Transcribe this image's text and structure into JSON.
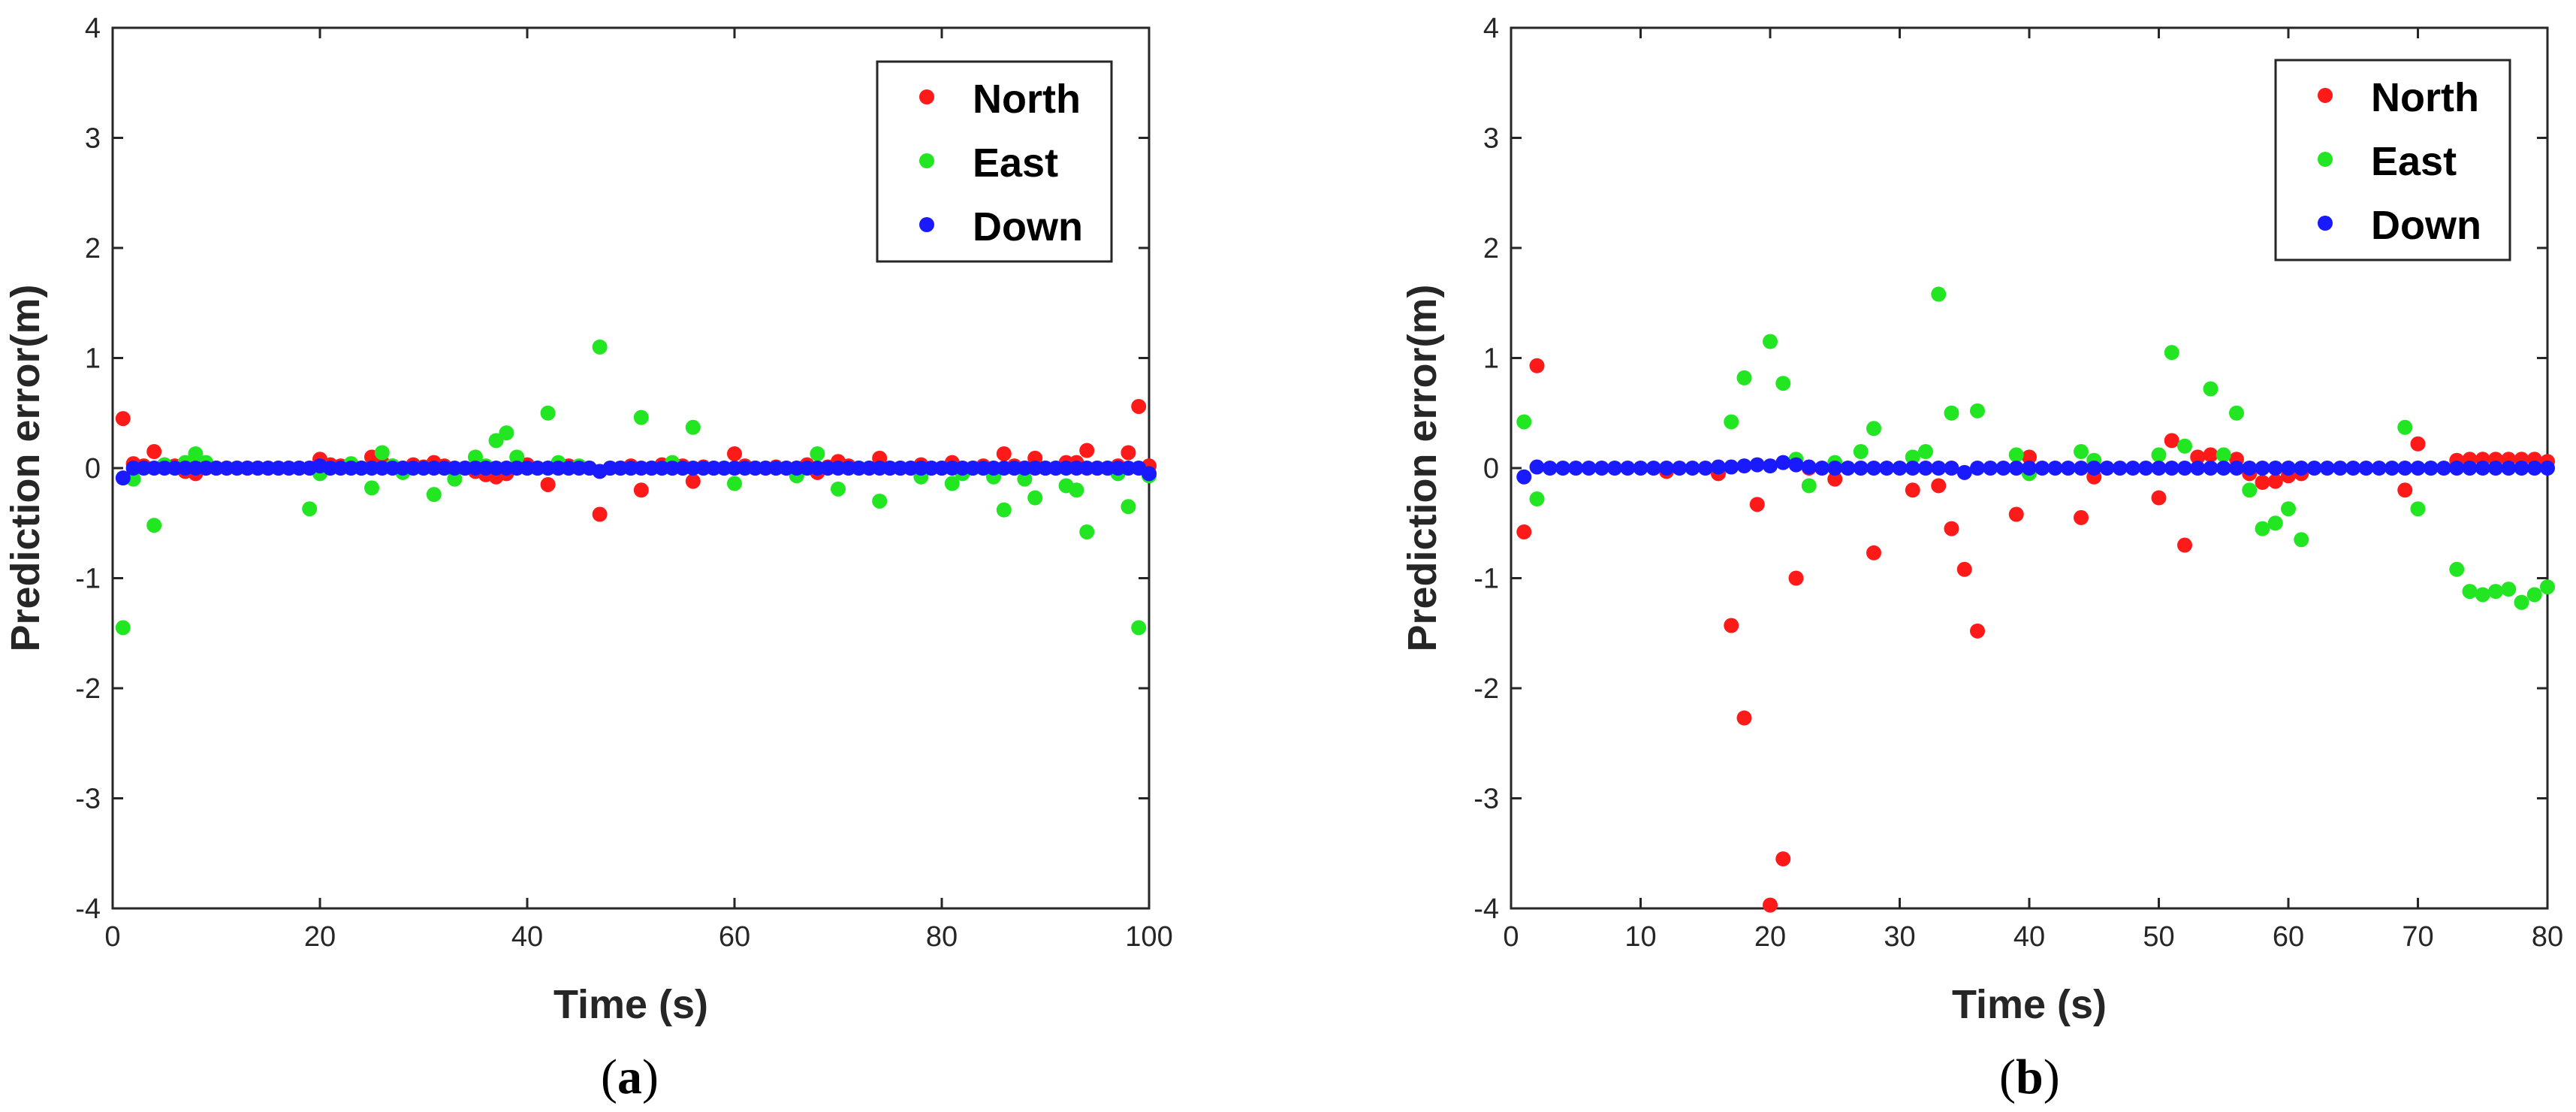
{
  "chart_data": [
    {
      "type": "scatter",
      "caption_letter": "a",
      "xlabel": "Time (s)",
      "ylabel": "Prediction error(m)",
      "xlim": [
        0,
        100
      ],
      "ylim": [
        -4,
        4
      ],
      "xticks": [
        "0",
        "20",
        "40",
        "60",
        "80",
        "100"
      ],
      "yticks": [
        "-4",
        "-3",
        "-2",
        "-1",
        "0",
        "1",
        "2",
        "3",
        "4"
      ],
      "legend": [
        "North",
        "East",
        "Down"
      ],
      "series": [
        {
          "name": "North",
          "color": "#ff1a1a",
          "x": [
            1,
            2,
            3,
            4,
            5,
            6,
            7,
            8,
            9,
            10,
            11,
            12,
            13,
            14,
            15,
            16,
            17,
            18,
            19,
            20,
            21,
            22,
            23,
            24,
            25,
            26,
            27,
            28,
            29,
            30,
            31,
            32,
            33,
            34,
            35,
            36,
            37,
            38,
            39,
            40,
            41,
            42,
            43,
            44,
            45,
            46,
            47,
            48,
            49,
            50,
            51,
            52,
            53,
            54,
            55,
            56,
            57,
            58,
            59,
            60,
            61,
            62,
            63,
            64,
            65,
            66,
            67,
            68,
            69,
            70,
            71,
            72,
            73,
            74,
            75,
            76,
            77,
            78,
            79,
            80,
            81,
            82,
            83,
            84,
            85,
            86,
            87,
            88,
            89,
            90,
            91,
            92,
            93,
            94,
            95,
            96,
            97,
            98,
            99,
            100
          ],
          "y": [
            0.45,
            0.04,
            0.02,
            0.15,
            0.03,
            0.02,
            -0.03,
            -0.05,
            0.0,
            0.0,
            0.0,
            0.0,
            0.0,
            0.0,
            0.0,
            0.0,
            0.0,
            0.0,
            0.0,
            0.08,
            0.03,
            0.02,
            0.01,
            0.0,
            0.1,
            0.05,
            0.02,
            0.0,
            0.03,
            0.01,
            0.05,
            0.02,
            -0.02,
            0.0,
            -0.03,
            -0.06,
            -0.08,
            -0.05,
            0.02,
            0.03,
            0.0,
            -0.15,
            0.0,
            0.02,
            0.01,
            0.0,
            -0.42,
            0.0,
            0.0,
            0.02,
            -0.2,
            0.0,
            0.03,
            0.0,
            0.02,
            -0.12,
            0.01,
            0.0,
            0.0,
            0.13,
            0.02,
            0.0,
            0.0,
            0.01,
            0.0,
            0.0,
            0.03,
            -0.04,
            0.01,
            0.06,
            0.02,
            0.0,
            0.0,
            0.09,
            0.0,
            0.0,
            0.0,
            0.03,
            0.0,
            0.0,
            0.05,
            0.0,
            0.0,
            0.02,
            0.0,
            0.13,
            0.02,
            0.0,
            0.09,
            0.0,
            0.0,
            0.05,
            0.05,
            0.16,
            0.0,
            0.0,
            0.02,
            0.14,
            0.56,
            0.02
          ]
        },
        {
          "name": "East",
          "color": "#22e622",
          "x": [
            1,
            2,
            4,
            5,
            6,
            7,
            8,
            9,
            10,
            12,
            14,
            16,
            18,
            19,
            20,
            21,
            23,
            24,
            25,
            26,
            27,
            28,
            29,
            30,
            31,
            32,
            33,
            35,
            36,
            37,
            38,
            39,
            40,
            41,
            42,
            43,
            44,
            45,
            46,
            47,
            48,
            49,
            50,
            51,
            52,
            53,
            54,
            55,
            56,
            57,
            58,
            59,
            60,
            61,
            62,
            64,
            66,
            68,
            70,
            72,
            74,
            76,
            78,
            80,
            81,
            82,
            83,
            84,
            85,
            86,
            87,
            88,
            89,
            90,
            91,
            92,
            93,
            94,
            95,
            96,
            97,
            98,
            99,
            100
          ],
          "y": [
            -1.45,
            -0.1,
            -0.52,
            0.03,
            0.0,
            0.05,
            0.13,
            0.05,
            0.0,
            0.0,
            0.0,
            0.0,
            0.0,
            -0.37,
            -0.05,
            0.0,
            0.04,
            0.0,
            -0.18,
            0.14,
            0.02,
            -0.04,
            0.0,
            0.0,
            -0.24,
            0.0,
            -0.1,
            0.1,
            0.02,
            0.25,
            0.32,
            0.1,
            0.0,
            0.0,
            0.5,
            0.05,
            0.0,
            0.02,
            0.0,
            1.1,
            0.0,
            0.0,
            0.0,
            0.46,
            0.0,
            0.0,
            0.05,
            0.0,
            0.37,
            0.0,
            0.0,
            0.0,
            -0.14,
            0.0,
            0.0,
            0.0,
            -0.07,
            0.13,
            -0.19,
            0.0,
            -0.3,
            0.0,
            -0.08,
            0.0,
            -0.14,
            -0.05,
            0.0,
            0.0,
            -0.08,
            -0.38,
            0.0,
            -0.1,
            -0.27,
            0.0,
            0.0,
            -0.16,
            -0.2,
            -0.58,
            0.0,
            0.0,
            -0.05,
            -0.35,
            -1.45,
            -0.07
          ]
        },
        {
          "name": "Down",
          "color": "#1a1aff",
          "x": [
            1,
            2,
            3,
            4,
            5,
            6,
            7,
            8,
            9,
            10,
            11,
            12,
            13,
            14,
            15,
            16,
            17,
            18,
            19,
            20,
            21,
            22,
            23,
            24,
            25,
            26,
            27,
            28,
            29,
            30,
            31,
            32,
            33,
            34,
            35,
            36,
            37,
            38,
            39,
            40,
            41,
            42,
            43,
            44,
            45,
            46,
            47,
            48,
            49,
            50,
            51,
            52,
            53,
            54,
            55,
            56,
            57,
            58,
            59,
            60,
            61,
            62,
            63,
            64,
            65,
            66,
            67,
            68,
            69,
            70,
            71,
            72,
            73,
            74,
            75,
            76,
            77,
            78,
            79,
            80,
            81,
            82,
            83,
            84,
            85,
            86,
            87,
            88,
            89,
            90,
            91,
            92,
            93,
            94,
            95,
            96,
            97,
            98,
            99,
            100
          ],
          "y": [
            -0.09,
            0.0,
            0.0,
            0.0,
            0.0,
            0.0,
            0.0,
            0.0,
            0.0,
            0.0,
            0.0,
            0.0,
            0.0,
            0.0,
            0.0,
            0.0,
            0.0,
            0.0,
            0.0,
            0.02,
            0.0,
            0.0,
            0.0,
            0.0,
            0.0,
            0.0,
            0.0,
            0.0,
            0.0,
            0.0,
            0.0,
            0.0,
            0.0,
            0.0,
            0.0,
            0.0,
            0.0,
            0.0,
            0.0,
            0.0,
            0.0,
            0.0,
            0.0,
            0.0,
            0.0,
            0.0,
            -0.03,
            0.0,
            0.0,
            0.0,
            0.0,
            0.0,
            0.0,
            0.0,
            0.0,
            0.0,
            0.0,
            0.0,
            0.0,
            0.0,
            0.0,
            0.0,
            0.0,
            0.0,
            0.0,
            0.0,
            0.0,
            0.0,
            0.0,
            0.0,
            0.0,
            0.0,
            0.0,
            0.0,
            0.0,
            0.0,
            0.0,
            0.0,
            0.0,
            0.0,
            0.0,
            0.0,
            0.0,
            0.0,
            0.0,
            0.0,
            0.0,
            0.0,
            0.0,
            0.0,
            0.0,
            0.0,
            0.0,
            0.0,
            0.0,
            0.0,
            0.0,
            0.0,
            0.0,
            -0.05
          ]
        }
      ]
    },
    {
      "type": "scatter",
      "caption_letter": "b",
      "xlabel": "Time (s)",
      "ylabel": "Prediction error(m)",
      "xlim": [
        0,
        80
      ],
      "ylim": [
        -4,
        4
      ],
      "xticks": [
        "0",
        "10",
        "20",
        "30",
        "40",
        "50",
        "60",
        "70",
        "80"
      ],
      "yticks": [
        "-4",
        "-3",
        "-2",
        "-1",
        "0",
        "1",
        "2",
        "3",
        "4"
      ],
      "legend": [
        "North",
        "East",
        "Down"
      ],
      "series": [
        {
          "name": "North",
          "color": "#ff1a1a",
          "x": [
            1,
            2,
            12,
            16,
            17,
            18,
            19,
            20,
            21,
            22,
            23,
            25,
            28,
            31,
            33,
            34,
            35,
            36,
            39,
            40,
            44,
            45,
            50,
            51,
            52,
            53,
            54,
            56,
            57,
            58,
            59,
            60,
            61,
            69,
            70,
            73,
            74,
            75,
            76,
            77,
            78,
            79,
            80
          ],
          "y": [
            -0.58,
            0.93,
            -0.03,
            -0.05,
            -1.43,
            -2.27,
            -0.33,
            -3.97,
            -3.55,
            -1.0,
            0.0,
            -0.1,
            -0.77,
            -0.2,
            -0.16,
            -0.55,
            -0.92,
            -1.48,
            -0.42,
            0.1,
            -0.45,
            -0.08,
            -0.27,
            0.25,
            -0.7,
            0.1,
            0.12,
            0.08,
            -0.05,
            -0.13,
            -0.12,
            -0.07,
            -0.05,
            -0.2,
            0.22,
            0.07,
            0.08,
            0.08,
            0.08,
            0.08,
            0.08,
            0.08,
            0.06
          ]
        },
        {
          "name": "East",
          "color": "#22e622",
          "x": [
            1,
            2,
            17,
            18,
            20,
            21,
            22,
            23,
            25,
            27,
            28,
            31,
            32,
            33,
            34,
            36,
            39,
            40,
            44,
            45,
            50,
            51,
            52,
            54,
            55,
            56,
            57,
            58,
            59,
            60,
            61,
            69,
            70,
            71,
            73,
            74,
            75,
            76,
            77,
            78,
            79,
            80
          ],
          "y": [
            0.42,
            -0.28,
            0.42,
            0.82,
            1.15,
            0.77,
            0.08,
            -0.16,
            0.05,
            0.15,
            0.36,
            0.1,
            0.15,
            1.58,
            0.5,
            0.52,
            0.12,
            -0.05,
            0.15,
            0.07,
            0.12,
            1.05,
            0.2,
            0.72,
            0.12,
            0.5,
            -0.2,
            -0.55,
            -0.5,
            -0.37,
            -0.65,
            0.37,
            -0.37,
            0.0,
            -0.92,
            -1.12,
            -1.15,
            -1.12,
            -1.1,
            -1.22,
            -1.15,
            -1.08
          ]
        },
        {
          "name": "Down",
          "color": "#1a1aff",
          "x": [
            1,
            2,
            3,
            4,
            5,
            6,
            7,
            8,
            9,
            10,
            11,
            12,
            13,
            14,
            15,
            16,
            17,
            18,
            19,
            20,
            21,
            22,
            23,
            24,
            25,
            26,
            27,
            28,
            29,
            30,
            31,
            32,
            33,
            34,
            35,
            36,
            37,
            38,
            39,
            40,
            41,
            42,
            43,
            44,
            45,
            46,
            47,
            48,
            49,
            50,
            51,
            52,
            53,
            54,
            55,
            56,
            57,
            58,
            59,
            60,
            61,
            62,
            63,
            64,
            65,
            66,
            67,
            68,
            69,
            70,
            71,
            72,
            73,
            74,
            75,
            76,
            77,
            78,
            79,
            80
          ],
          "y": [
            -0.08,
            0.01,
            0.0,
            0.0,
            0.0,
            0.0,
            0.0,
            0.0,
            0.0,
            0.0,
            0.0,
            0.0,
            0.0,
            0.0,
            0.0,
            0.01,
            0.01,
            0.02,
            0.03,
            0.02,
            0.05,
            0.03,
            0.01,
            0.0,
            0.0,
            0.0,
            0.0,
            0.0,
            0.0,
            0.0,
            0.0,
            0.0,
            0.0,
            0.0,
            -0.04,
            0.0,
            0.0,
            0.0,
            0.0,
            0.0,
            0.0,
            0.0,
            0.0,
            0.0,
            0.0,
            0.0,
            0.0,
            0.0,
            0.0,
            0.0,
            0.0,
            0.0,
            0.0,
            0.0,
            0.0,
            0.0,
            0.0,
            0.0,
            0.0,
            0.0,
            0.0,
            0.0,
            0.0,
            0.0,
            0.0,
            0.0,
            0.0,
            0.0,
            0.0,
            0.0,
            0.0,
            0.0,
            0.0,
            0.0,
            0.0,
            0.0,
            0.0,
            0.0,
            0.0,
            0.0
          ]
        }
      ]
    }
  ]
}
